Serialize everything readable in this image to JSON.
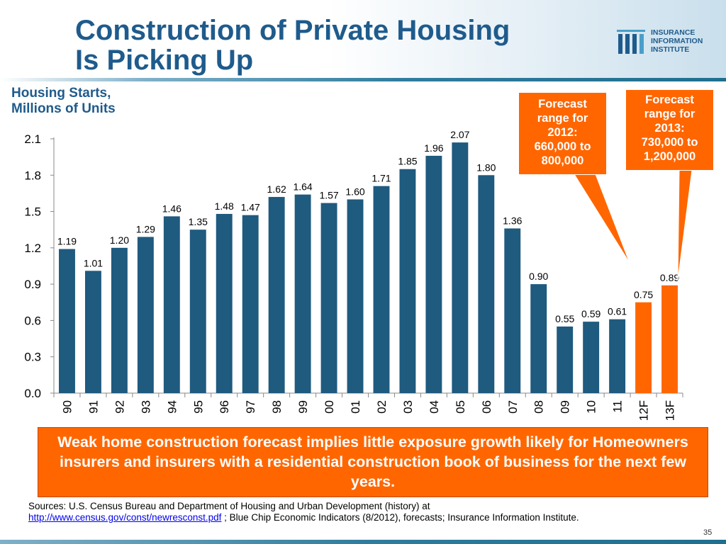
{
  "header": {
    "title_line1": "Construction of Private Housing",
    "title_line2": "Is Picking Up",
    "logo": {
      "line1": "INSURANCE",
      "line2": "INFORMATION",
      "line3": "INSTITUTE",
      "color": "#1f5b8c"
    }
  },
  "chart_data": {
    "type": "bar",
    "title": "Housing Starts, Millions of Units",
    "ylabel_line1": "Housing Starts,",
    "ylabel_line2": "Millions of Units",
    "categories": [
      "90",
      "91",
      "92",
      "93",
      "94",
      "95",
      "96",
      "97",
      "98",
      "99",
      "00",
      "01",
      "02",
      "03",
      "04",
      "05",
      "06",
      "07",
      "08",
      "09",
      "10",
      "11",
      "12F",
      "13F"
    ],
    "values": [
      1.19,
      1.01,
      1.2,
      1.29,
      1.46,
      1.35,
      1.48,
      1.47,
      1.62,
      1.64,
      1.57,
      1.6,
      1.71,
      1.85,
      1.96,
      2.07,
      1.8,
      1.36,
      0.9,
      0.55,
      0.59,
      0.61,
      0.75,
      0.89
    ],
    "labels": [
      "1.19",
      "1.01",
      "1.20",
      "1.29",
      "1.46",
      "1.35",
      "1.48",
      "1.47",
      "1.62",
      "1.64",
      "1.57",
      "1.60",
      "1.71",
      "1.85",
      "1.96",
      "2.07",
      "1.80",
      "1.36",
      "0.90",
      "0.55",
      "0.59",
      "0.61",
      "0.75",
      "0.89"
    ],
    "forecast": [
      false,
      false,
      false,
      false,
      false,
      false,
      false,
      false,
      false,
      false,
      false,
      false,
      false,
      false,
      false,
      false,
      false,
      false,
      false,
      false,
      false,
      false,
      true,
      true
    ],
    "yticks": [
      "0.0",
      "0.3",
      "0.6",
      "0.9",
      "1.2",
      "1.5",
      "1.8",
      "2.1"
    ],
    "ylim": [
      0,
      2.1
    ],
    "grid": false,
    "colors": {
      "history": "#1f5a7f",
      "forecast": "#ff6600"
    }
  },
  "callouts": {
    "c2012": {
      "line1": "Forecast",
      "line2": "range for",
      "line3": "2012:",
      "line4": "660,000 to",
      "line5": "800,000"
    },
    "c2013": {
      "line1": "Forecast",
      "line2": "range for",
      "line3": "2013:",
      "line4": "730,000 to",
      "line5": "1,200,000"
    }
  },
  "banner": {
    "text": "Weak home construction forecast implies little exposure growth likely for Homeowners insurers and insurers with a residential construction book of business for the next few years."
  },
  "sources": {
    "line1": "Sources: U.S. Census Bureau and Department of Housing and Urban Development (history) at",
    "link": "http://www.census.gov/const/newresconst.pdf",
    "line2_rest": " ; Blue Chip Economic Indicators (8/2012), forecasts; Insurance Information Institute."
  },
  "page_number": "35"
}
